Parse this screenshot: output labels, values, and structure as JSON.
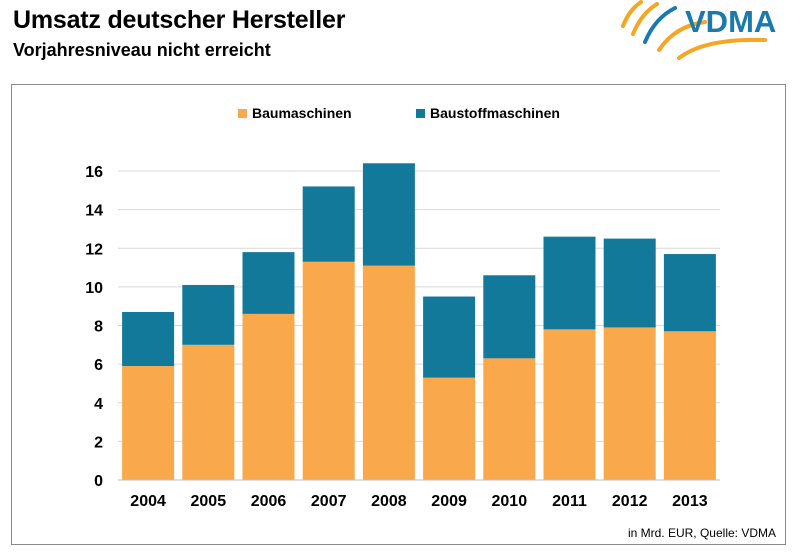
{
  "header": {
    "title": "Umsatz deutscher Hersteller",
    "subtitle": "Vorjahresniveau nicht erreicht",
    "logo_text": "VDMA"
  },
  "footer": {
    "source": "in Mrd. EUR, Quelle: VDMA"
  },
  "colors": {
    "baumaschinen": "#F9A94B",
    "baustoffmaschinen": "#13799A",
    "logo_blue": "#1B7AAD",
    "logo_orange": "#F5A623",
    "grid": "#D9D9D9"
  },
  "chart_data": {
    "type": "bar",
    "stacked": true,
    "categories": [
      "2004",
      "2005",
      "2006",
      "2007",
      "2008",
      "2009",
      "2010",
      "2011",
      "2012",
      "2013"
    ],
    "series": [
      {
        "name": "Baumaschinen",
        "values": [
          5.9,
          7.0,
          8.6,
          11.3,
          11.1,
          5.3,
          6.3,
          7.8,
          7.9,
          7.7
        ]
      },
      {
        "name": "Baustoffmaschinen",
        "values": [
          2.8,
          3.1,
          3.2,
          3.9,
          5.3,
          4.2,
          4.3,
          4.8,
          4.6,
          4.0
        ]
      }
    ],
    "yticks": [
      "0",
      "2",
      "4",
      "6",
      "8",
      "10",
      "12",
      "14",
      "16"
    ],
    "ylim": [
      0,
      16
    ],
    "grid": true,
    "legend_position": "top"
  }
}
